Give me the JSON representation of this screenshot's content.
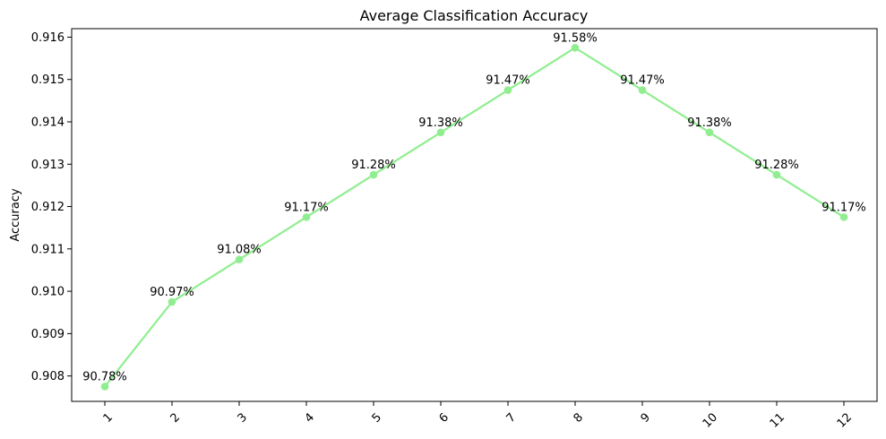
{
  "chart_data": {
    "type": "line",
    "title": "Average Classification Accuracy",
    "xlabel": "",
    "ylabel": "Accuracy",
    "categories": [
      "1",
      "2",
      "3",
      "4",
      "5",
      "6",
      "7",
      "8",
      "9",
      "10",
      "11",
      "12"
    ],
    "series": [
      {
        "values": [
          0.90775,
          0.90975,
          0.91075,
          0.91175,
          0.91275,
          0.91375,
          0.91475,
          0.91575,
          0.91475,
          0.91375,
          0.91275,
          0.91175
        ],
        "data_labels": [
          "90.78%",
          "90.97%",
          "91.08%",
          "91.17%",
          "91.28%",
          "91.38%",
          "91.47%",
          "91.58%",
          "91.47%",
          "91.38%",
          "91.28%",
          "91.17%"
        ],
        "color": "#90ee90",
        "marker": "circle"
      }
    ],
    "ylim": [
      0.9074,
      0.9162
    ],
    "yticks": [
      0.908,
      0.909,
      0.91,
      0.911,
      0.912,
      0.913,
      0.914,
      0.915,
      0.916
    ],
    "ytick_labels": [
      "0.908",
      "0.909",
      "0.910",
      "0.911",
      "0.912",
      "0.913",
      "0.914",
      "0.915",
      "0.916"
    ],
    "xtick_rotation": 45,
    "grid": false,
    "legend": "none"
  }
}
